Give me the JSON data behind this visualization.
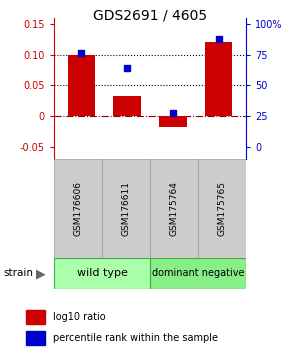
{
  "title": "GDS2691 / 4605",
  "samples": [
    "GSM176606",
    "GSM176611",
    "GSM175764",
    "GSM175765"
  ],
  "log10_ratio": [
    0.1,
    0.033,
    -0.018,
    0.12
  ],
  "percentile_rank": [
    0.76,
    0.64,
    0.28,
    0.88
  ],
  "bar_color": "#cc0000",
  "dot_color": "#0000cc",
  "ylim_left": [
    -0.07,
    0.16
  ],
  "ylim_right": [
    -0.046,
    0.115
  ],
  "yticks_left": [
    -0.05,
    0.0,
    0.05,
    0.1,
    0.15
  ],
  "ytick_labels_left": [
    "-0.05",
    "0",
    "0.05",
    "0.10",
    "0.15"
  ],
  "yticks_right_vals": [
    0.0,
    0.25,
    0.5,
    0.75,
    1.0
  ],
  "ytick_labels_right": [
    "0",
    "25",
    "50",
    "75",
    "100%"
  ],
  "hlines": [
    0.05,
    0.1
  ],
  "background_color": "#ffffff",
  "bar_width": 0.6,
  "label_log10": "log10 ratio",
  "label_pct": "percentile rank within the sample",
  "group1_name": "wild type",
  "group2_name": "dominant negative",
  "group1_color": "#aaffaa",
  "group2_color": "#88ee88",
  "sample_box_color": "#cccccc",
  "sample_box_edge": "#999999"
}
